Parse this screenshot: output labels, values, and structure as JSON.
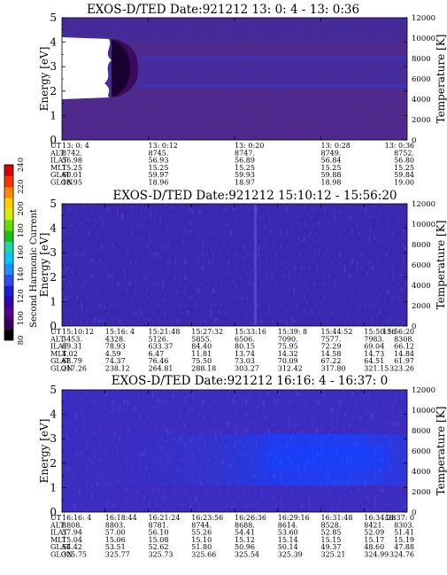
{
  "colorbar": {
    "label": "Second Harmonic Current",
    "ticks": [
      "80",
      "100",
      "120",
      "140",
      "160",
      "180",
      "200",
      "220",
      "240"
    ],
    "range": [
      80,
      240
    ],
    "colors": [
      "#000000",
      "#3a0060",
      "#56008e",
      "#3600a8",
      "#1c1cd4",
      "#2f4cf0",
      "#1f8fff",
      "#00c8ff",
      "#1fd4a8",
      "#19c219",
      "#66dd00",
      "#d6ef00",
      "#ffcc00",
      "#ff8800",
      "#ff3300",
      "#d60000"
    ]
  },
  "chart_data": [
    {
      "type": "heatmap",
      "title": "EXOS-D/TED  Date:921212  13: 0: 4 - 13: 0:36",
      "ylabel": "Energy [eV]",
      "y2label": "Temperature [K]",
      "ylim": [
        0,
        5
      ],
      "y_ticks": [
        "0",
        "1",
        "2",
        "3",
        "4",
        "5"
      ],
      "y2lim": [
        0,
        12000
      ],
      "y2_ticks": [
        "0",
        "2000",
        "4000",
        "6000",
        "8000",
        "10000",
        "12000"
      ],
      "time_rows": {
        "labels": [
          "UT",
          "ALT",
          "ILAT",
          "MLT",
          "GLAT",
          "GLON"
        ],
        "columns": [
          [
            "13: 0: 4",
            "8742.",
            "56.98",
            "15.25",
            "60.01",
            "18.95"
          ],
          [
            "13: 0:12",
            "8745.",
            "56.93",
            "15.25",
            "59.97",
            "18.96"
          ],
          [
            "13: 0:20",
            "8747.",
            "56.89",
            "15.25",
            "59.93",
            "18.97"
          ],
          [
            "13: 0:28",
            "8749.",
            "56.84",
            "15.25",
            "59.88",
            "18.98"
          ],
          [
            "13: 0:36",
            "8752.",
            "56.80",
            "15.25",
            "59.84",
            "19.00"
          ]
        ]
      },
      "no_data_region": {
        "t_start": 0,
        "t_end": 0.19,
        "energy_low": 1.8,
        "energy_high": 4.2
      }
    },
    {
      "type": "heatmap",
      "title": "EXOS-D/TED  Date:921212  15:10:12 - 15:56:20",
      "ylabel": "Energy [eV]",
      "y2label": "Temperature [K]",
      "ylim": [
        0,
        5
      ],
      "y_ticks": [
        "0",
        "1",
        "2",
        "3",
        "4",
        "5"
      ],
      "y2lim": [
        0,
        12000
      ],
      "y2_ticks": [
        "0",
        "2000",
        "4000",
        "6000",
        "8000",
        "10000",
        "12000"
      ],
      "time_rows": {
        "labels": [
          "UT",
          "ALT",
          "ILAT",
          "MLT",
          "GLAT",
          "GLON"
        ],
        "columns": [
          [
            "15:10:12",
            "3453.",
            "69.31",
            "4.02",
            "68.79",
            "217.26"
          ],
          [
            "15:16: 4",
            "4328.",
            "78.93",
            "4.59",
            "74.37",
            "238.12"
          ],
          [
            "15:21:48",
            "5126.",
            "633.37",
            "6.47",
            "76.46",
            "264.81"
          ],
          [
            "15:27:32",
            "5855.",
            "84.40",
            "11.81",
            "75.50",
            "288.18"
          ],
          [
            "15:33:16",
            "6506.",
            "80.15",
            "13.74",
            "73.03",
            "303.27"
          ],
          [
            "15:39: 8",
            "7090.",
            "75.95",
            "14.32",
            "70.09",
            "312.42"
          ],
          [
            "15:44:52",
            "7577.",
            "72.29",
            "14.58",
            "67.22",
            "317.80"
          ],
          [
            "15:50:36",
            "7983.",
            "69.04",
            "14.73",
            "64.51",
            "321.15"
          ],
          [
            "15:56:20",
            "8308.",
            "66.12",
            "14.84",
            "61.97",
            "323.26"
          ]
        ]
      }
    },
    {
      "type": "heatmap",
      "title": "EXOS-D/TED  Date:921212  16:16: 4 - 16:37: 0",
      "ylabel": "Energy [eV]",
      "y2label": "Temperature [K]",
      "ylim": [
        0,
        5
      ],
      "y_ticks": [
        "0",
        "1",
        "2",
        "3",
        "4",
        "5"
      ],
      "y2lim": [
        0,
        12000
      ],
      "y2_ticks": [
        "0",
        "2000",
        "4000",
        "6000",
        "8000",
        "10000",
        "12000"
      ],
      "time_rows": {
        "labels": [
          "UT",
          "ALT",
          "ILAT",
          "MLT",
          "GLAT",
          "GLON"
        ],
        "columns": [
          [
            "16:16: 4",
            "8808.",
            "57.94",
            "15.04",
            "54.42",
            "325.75"
          ],
          [
            "16:18:44",
            "8803.",
            "57.00",
            "15.06",
            "53.51",
            "325.77"
          ],
          [
            "16:21:24",
            "8781.",
            "56.10",
            "15.08",
            "52.62",
            "325.73"
          ],
          [
            "16:23:56",
            "8744.",
            "55.26",
            "15.10",
            "51.80",
            "325.66"
          ],
          [
            "16:26:36",
            "8688.",
            "54.41",
            "15.12",
            "50.96",
            "325.54"
          ],
          [
            "16:29:16",
            "8614.",
            "53.60",
            "15.14",
            "50.14",
            "325.39"
          ],
          [
            "16:31:48",
            "8528.",
            "52.85",
            "15.15",
            "49.37",
            "325.21"
          ],
          [
            "16:34:28",
            "8421.",
            "52.09",
            "15.17",
            "48.60",
            "324.99"
          ],
          [
            "16:37: 0",
            "8303.",
            "51.41",
            "15.19",
            "47.88",
            "324.76"
          ]
        ]
      }
    }
  ]
}
